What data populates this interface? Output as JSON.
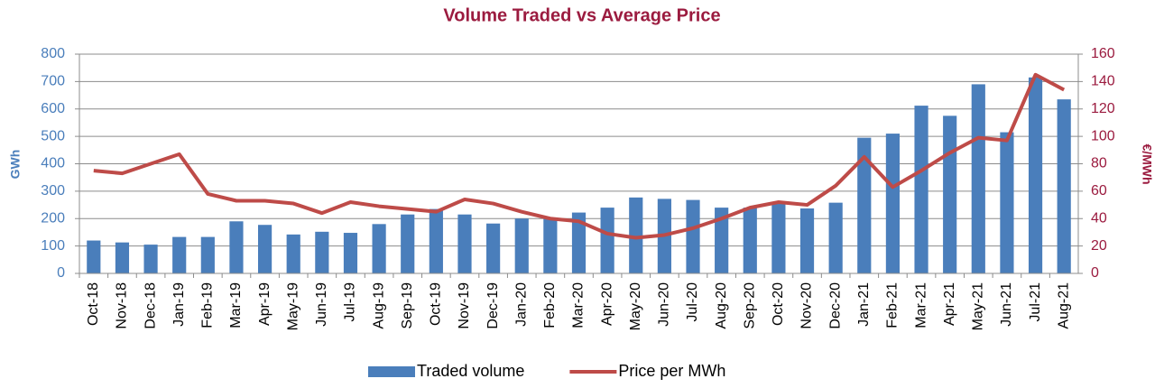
{
  "chart_data": {
    "type": "combo",
    "title": "Volume Traded vs Average Price",
    "y_label": "GWh",
    "y2_label": "€/MWh",
    "categories": [
      "Oct-18",
      "Nov-18",
      "Dec-18",
      "Jan-19",
      "Feb-19",
      "Mar-19",
      "Apr-19",
      "May-19",
      "Jun-19",
      "Jul-19",
      "Aug-19",
      "Sep-19",
      "Oct-19",
      "Nov-19",
      "Dec-19",
      "Jan-20",
      "Feb-20",
      "Mar-20",
      "Apr-20",
      "May-20",
      "Jun-20",
      "Jul-20",
      "Aug-20",
      "Sep-20",
      "Oct-20",
      "Nov-20",
      "Dec-20",
      "Jan-21",
      "Feb-21",
      "Mar-21",
      "Apr-21",
      "May-21",
      "Jun-21",
      "Jul-21",
      "Aug-21"
    ],
    "series": [
      {
        "name": "Traded volume",
        "type": "bar",
        "axis": "y",
        "color": "#4a7ebb",
        "values": [
          120,
          113,
          105,
          133,
          133,
          190,
          177,
          142,
          152,
          148,
          180,
          215,
          235,
          215,
          182,
          200,
          200,
          222,
          240,
          277,
          272,
          268,
          240,
          240,
          258,
          237,
          258,
          495,
          510,
          612,
          575,
          690,
          515,
          715,
          635
        ]
      },
      {
        "name": "Price per MWh",
        "type": "line",
        "axis": "y2",
        "color": "#be4b48",
        "values": [
          75,
          73,
          80,
          87,
          58,
          53,
          53,
          51,
          44,
          52,
          49,
          47,
          45,
          54,
          51,
          45,
          40,
          38,
          29,
          26,
          28,
          33,
          40,
          48,
          52,
          50,
          64,
          85,
          63,
          75,
          88,
          99,
          97,
          145,
          134
        ]
      }
    ],
    "ylim": [
      0,
      800
    ],
    "yticks": [
      0,
      100,
      200,
      300,
      400,
      500,
      600,
      700,
      800
    ],
    "y2lim": [
      0,
      160
    ],
    "y2ticks": [
      0,
      20,
      40,
      60,
      80,
      100,
      120,
      140,
      160
    ],
    "grid": true,
    "legend": "bottom"
  }
}
